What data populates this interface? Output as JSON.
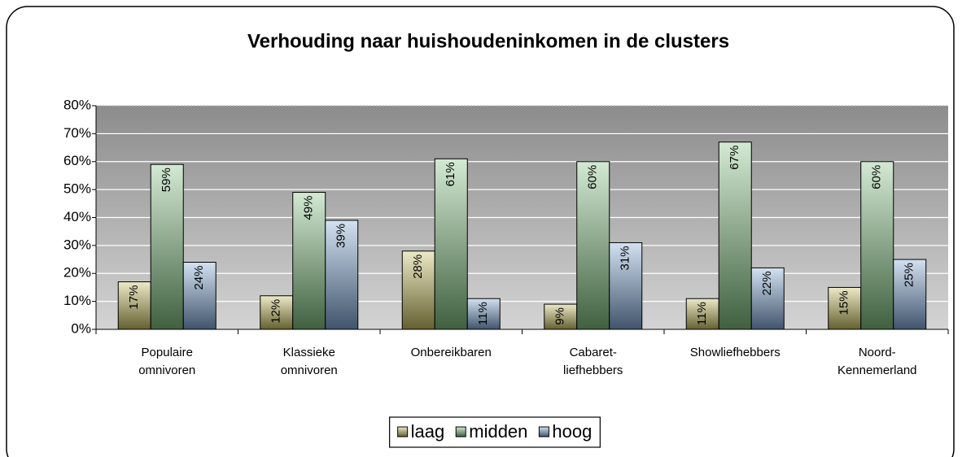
{
  "chart_data": {
    "type": "bar",
    "title": "Verhouding naar huishoudeninkomen in de clusters",
    "categories": [
      "Populaire\nomnivoren",
      "Klassieke\nomnivoren",
      "Onbereikbaren",
      "Cabaret-\nliefhebbers",
      "Showliefhebbers",
      "Noord-\nKennemerland"
    ],
    "series": [
      {
        "name": "laag",
        "color": "#c8c060",
        "values": [
          17,
          12,
          28,
          9,
          11,
          15
        ],
        "value_labels": [
          "17%",
          "12%",
          "28%",
          "9%",
          "11%",
          "15%"
        ]
      },
      {
        "name": "midden",
        "color": "#80c080",
        "values": [
          59,
          49,
          61,
          60,
          67,
          60
        ],
        "value_labels": [
          "59%",
          "49%",
          "61%",
          "60%",
          "67%",
          "60%"
        ]
      },
      {
        "name": "hoog",
        "color": "#80a8d8",
        "values": [
          24,
          39,
          11,
          31,
          22,
          25
        ],
        "value_labels": [
          "24%",
          "39%",
          "11%",
          "31%",
          "22%",
          "25%"
        ]
      }
    ],
    "ylim": [
      0,
      80
    ],
    "yticks": [
      {
        "value": 0,
        "label": "0%"
      },
      {
        "value": 10,
        "label": "10%"
      },
      {
        "value": 20,
        "label": "20%"
      },
      {
        "value": 30,
        "label": "30%"
      },
      {
        "value": 40,
        "label": "40%"
      },
      {
        "value": 50,
        "label": "50%"
      },
      {
        "value": 60,
        "label": "60%"
      },
      {
        "value": 70,
        "label": "70%"
      },
      {
        "value": 80,
        "label": "80%"
      }
    ],
    "grid": true,
    "legend": "bottom"
  }
}
